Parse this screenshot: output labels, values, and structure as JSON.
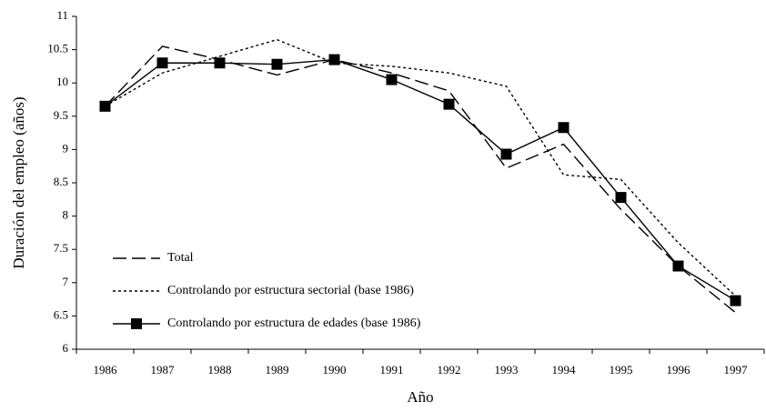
{
  "chart_data": {
    "type": "line",
    "x_label": "Año",
    "y_label": "Duración del empleo (años)",
    "categories": [
      "1986",
      "1987",
      "1988",
      "1989",
      "1990",
      "1991",
      "1992",
      "1993",
      "1994",
      "1995",
      "1996",
      "1997"
    ],
    "series": [
      {
        "name": "Total",
        "color": "#000000",
        "style": "dashed",
        "values": [
          9.65,
          10.55,
          10.35,
          10.12,
          10.35,
          10.15,
          9.88,
          8.72,
          9.08,
          8.1,
          7.25,
          6.55
        ]
      },
      {
        "name": "Controlando por estructura sectorial (base 1986)",
        "color": "#000000",
        "style": "dotted",
        "values": [
          9.65,
          10.15,
          10.4,
          10.65,
          10.3,
          10.25,
          10.15,
          9.95,
          8.62,
          8.55,
          7.6,
          6.8
        ]
      },
      {
        "name": "Controlando por estructura de edades (base 1986)",
        "color": "#000000",
        "style": "solid",
        "marker": "square",
        "values": [
          9.65,
          10.3,
          10.3,
          10.28,
          10.35,
          10.05,
          9.68,
          8.93,
          9.33,
          8.28,
          7.25,
          6.73
        ]
      }
    ],
    "ylim": [
      6,
      11
    ],
    "yticks": [
      6,
      6.5,
      7,
      7.5,
      8,
      8.5,
      9,
      9.5,
      10,
      10.5,
      11
    ],
    "grid": false,
    "legend": "lower left"
  }
}
